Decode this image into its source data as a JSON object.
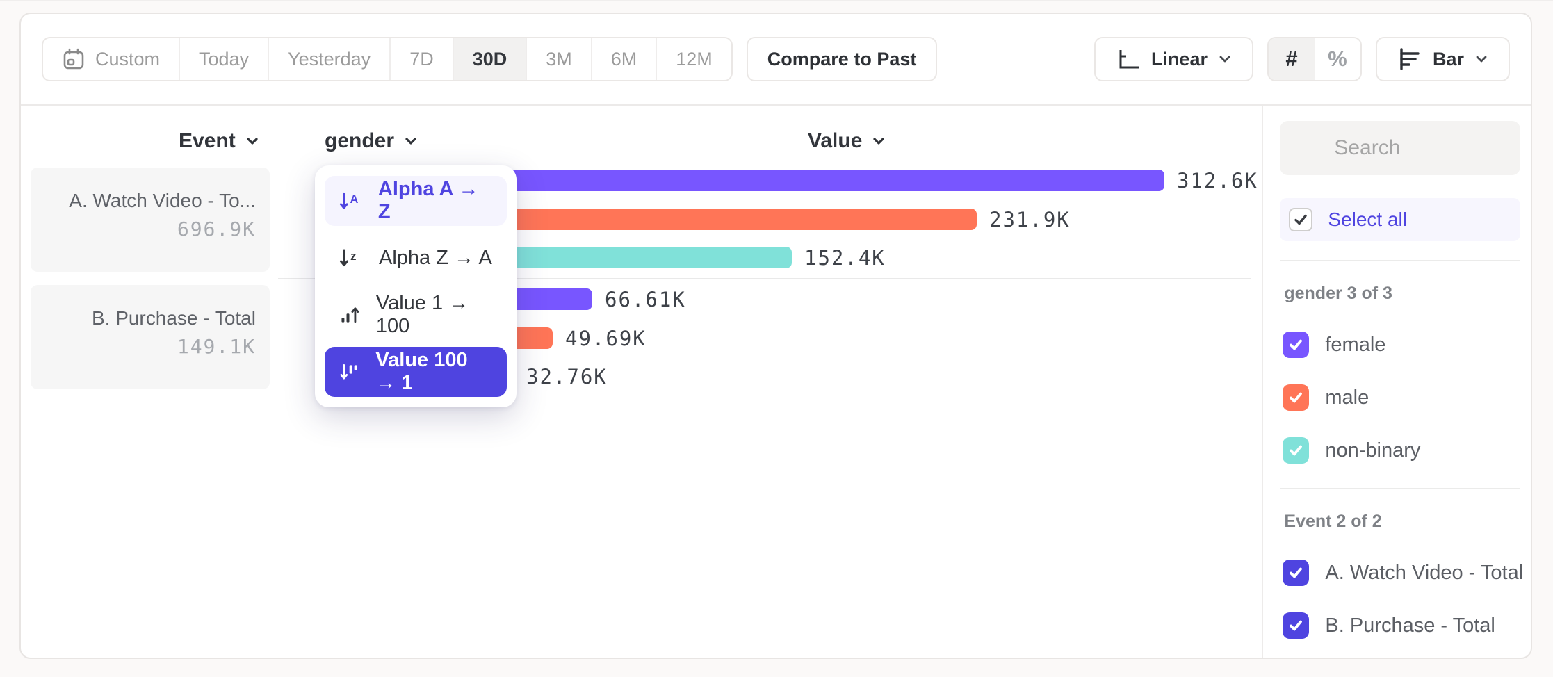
{
  "toolbar": {
    "date_ranges": [
      "Custom",
      "Today",
      "Yesterday",
      "7D",
      "30D",
      "3M",
      "6M",
      "12M"
    ],
    "selected_date_range": "30D",
    "compare_label": "Compare to Past",
    "scale_label": "Linear",
    "number_formats": [
      "#",
      "%"
    ],
    "selected_number_format": "#",
    "chart_type_label": "Bar"
  },
  "columns": {
    "event": "Event",
    "breakdown": "gender",
    "value": "Value"
  },
  "sort_menu": {
    "items": [
      {
        "name": "alpha-asc",
        "label": "Alpha A → Z",
        "state": "highlighted"
      },
      {
        "name": "alpha-desc",
        "label": "Alpha Z → A",
        "state": "normal"
      },
      {
        "name": "value-asc",
        "label": "Value 1 → 100",
        "state": "normal"
      },
      {
        "name": "value-desc",
        "label": "Value 100 → 1",
        "state": "selected"
      }
    ]
  },
  "chart_data": {
    "type": "bar",
    "orientation": "horizontal",
    "value_axis_label": "Value",
    "value_range": [
      0,
      312600
    ],
    "categories": [
      "female",
      "male",
      "non-binary"
    ],
    "groups": [
      {
        "event_card_label": "A. Watch Video - To...",
        "event_total": "696.9K",
        "bars": [
          {
            "category": "female",
            "value": 312600,
            "label": "312.6K",
            "color": "#7856FF"
          },
          {
            "category": "male",
            "value": 231900,
            "label": "231.9K",
            "color": "#FF7557"
          },
          {
            "category": "non-binary",
            "value": 152400,
            "label": "152.4K",
            "color": "#80E1D9"
          }
        ]
      },
      {
        "event_card_label": "B. Purchase - Total",
        "event_total": "149.1K",
        "bars": [
          {
            "category": "female",
            "value": 66610,
            "label": "66.61K",
            "color": "#7856FF"
          },
          {
            "category": "male",
            "value": 49690,
            "label": "49.69K",
            "color": "#FF7557"
          },
          {
            "category": "non-binary",
            "value": 32760,
            "label": "32.76K",
            "color": "#80E1D9"
          }
        ]
      }
    ]
  },
  "sidebar": {
    "search_placeholder": "Search",
    "select_all_label": "Select all",
    "sections": [
      {
        "title": "gender 3 of 3",
        "items": [
          {
            "label": "female",
            "checked": true,
            "color": "#7856FF"
          },
          {
            "label": "male",
            "checked": true,
            "color": "#FF7557"
          },
          {
            "label": "non-binary",
            "checked": true,
            "color": "#80E1D9"
          }
        ]
      },
      {
        "title": "Event 2 of 2",
        "items": [
          {
            "label": "A. Watch Video - Total",
            "checked": true,
            "color": "#4F44E0"
          },
          {
            "label": "B. Purchase - Total",
            "checked": true,
            "color": "#4F44E0"
          }
        ]
      }
    ]
  },
  "colors": {
    "accent": "#4F44E0",
    "series_purple": "#7856FF",
    "series_orange": "#FF7557",
    "series_teal": "#80E1D9"
  }
}
